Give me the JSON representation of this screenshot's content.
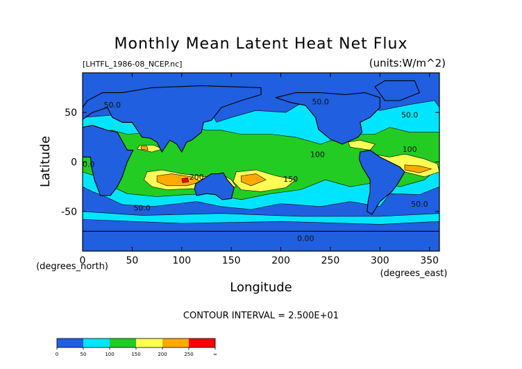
{
  "chart_data": {
    "type": "heatmap",
    "title": "Monthly Mean Latent Heat Net Flux",
    "file_label": "[LHTFL_1986-08_NCEP.nc]",
    "units_label": "(units:W/m^2)",
    "xlabel": "Longitude",
    "ylabel": "Latitude",
    "x_unit_label": "(degrees_east)",
    "y_unit_label": "(degrees_north)",
    "xlim": [
      0,
      360
    ],
    "ylim": [
      -90,
      90
    ],
    "x_ticks": [
      0,
      50,
      100,
      150,
      200,
      250,
      300,
      350
    ],
    "y_ticks": [
      -50,
      0,
      50
    ],
    "contour_interval_text": "CONTOUR INTERVAL = 2.500E+01",
    "contour_labels": [
      {
        "text": "50.0",
        "x": 30,
        "y": 55
      },
      {
        "text": "50.0",
        "x": 240,
        "y": 58
      },
      {
        "text": "50.0",
        "x": 330,
        "y": 45
      },
      {
        "text": "100",
        "x": 237,
        "y": 5
      },
      {
        "text": "150",
        "x": 210,
        "y": -20
      },
      {
        "text": "200",
        "x": 115,
        "y": -18
      },
      {
        "text": "0.0",
        "x": 6,
        "y": -5
      },
      {
        "text": "50.0",
        "x": 60,
        "y": -49
      },
      {
        "text": "0.00",
        "x": 225,
        "y": -80
      },
      {
        "text": "50.0",
        "x": 340,
        "y": -45
      },
      {
        "text": "100",
        "x": 330,
        "y": 10
      }
    ],
    "colorbar": {
      "bins": [
        {
          "from": 0,
          "to": 25,
          "color": "#1f5fe0"
        },
        {
          "from": 25,
          "to": 50,
          "color": "#1f5fe0"
        },
        {
          "from": 50,
          "to": 75,
          "color": "#00e5ff"
        },
        {
          "from": 75,
          "to": 100,
          "color": "#00e5ff"
        },
        {
          "from": 100,
          "to": 125,
          "color": "#22cc22"
        },
        {
          "from": 125,
          "to": 150,
          "color": "#22cc22"
        },
        {
          "from": 150,
          "to": 175,
          "color": "#ffff55"
        },
        {
          "from": 175,
          "to": 200,
          "color": "#ffff55"
        },
        {
          "from": 200,
          "to": 225,
          "color": "#ffaa00"
        },
        {
          "from": 225,
          "to": 250,
          "color": "#ffaa00"
        },
        {
          "from": 250,
          "to": 275,
          "color": "#ff0000"
        },
        {
          "from": 275,
          "to": null,
          "color": "#ff0000"
        }
      ],
      "tick_labels": [
        "0",
        "50",
        "100",
        "150",
        "200",
        "250",
        "∞"
      ]
    },
    "regions": [
      {
        "level": 0,
        "color": "#1f5fe0",
        "points": [
          [
            0,
            -90
          ],
          [
            360,
            -90
          ],
          [
            360,
            90
          ],
          [
            0,
            90
          ]
        ]
      },
      {
        "level": 1,
        "color": "#00e5ff",
        "points": [
          [
            0,
            45
          ],
          [
            40,
            48
          ],
          [
            55,
            62
          ],
          [
            80,
            66
          ],
          [
            110,
            58
          ],
          [
            130,
            50
          ],
          [
            135,
            40
          ],
          [
            150,
            45
          ],
          [
            175,
            52
          ],
          [
            205,
            50
          ],
          [
            225,
            62
          ],
          [
            250,
            66
          ],
          [
            275,
            60
          ],
          [
            300,
            52
          ],
          [
            330,
            58
          ],
          [
            355,
            62
          ],
          [
            360,
            55
          ],
          [
            360,
            -25
          ],
          [
            340,
            -33
          ],
          [
            310,
            -32
          ],
          [
            300,
            -45
          ],
          [
            270,
            -40
          ],
          [
            240,
            -45
          ],
          [
            200,
            -42
          ],
          [
            170,
            -48
          ],
          [
            140,
            -45
          ],
          [
            115,
            -40
          ],
          [
            70,
            -45
          ],
          [
            40,
            -43
          ],
          [
            25,
            -36
          ],
          [
            10,
            -30
          ],
          [
            0,
            -25
          ]
        ]
      },
      {
        "level": 1,
        "color": "#00e5ff",
        "points": [
          [
            0,
            -50
          ],
          [
            60,
            -54
          ],
          [
            140,
            -52
          ],
          [
            220,
            -55
          ],
          [
            300,
            -55
          ],
          [
            360,
            -52
          ],
          [
            360,
            -60
          ],
          [
            300,
            -63
          ],
          [
            200,
            -60
          ],
          [
            100,
            -62
          ],
          [
            0,
            -58
          ]
        ]
      },
      {
        "level": 2,
        "color": "#22cc22",
        "points": [
          [
            0,
            30
          ],
          [
            30,
            32
          ],
          [
            45,
            28
          ],
          [
            75,
            30
          ],
          [
            90,
            27
          ],
          [
            110,
            36
          ],
          [
            125,
            32
          ],
          [
            140,
            32
          ],
          [
            160,
            28
          ],
          [
            190,
            28
          ],
          [
            215,
            25
          ],
          [
            240,
            18
          ],
          [
            270,
            28
          ],
          [
            295,
            28
          ],
          [
            310,
            35
          ],
          [
            330,
            30
          ],
          [
            360,
            30
          ],
          [
            360,
            -5
          ],
          [
            345,
            -18
          ],
          [
            320,
            -25
          ],
          [
            300,
            -20
          ],
          [
            270,
            -25
          ],
          [
            245,
            -18
          ],
          [
            220,
            -28
          ],
          [
            190,
            -32
          ],
          [
            160,
            -38
          ],
          [
            130,
            -32
          ],
          [
            105,
            -33
          ],
          [
            75,
            -35
          ],
          [
            45,
            -32
          ],
          [
            30,
            -25
          ],
          [
            15,
            -15
          ],
          [
            0,
            -10
          ]
        ]
      },
      {
        "level": 3,
        "color": "#ffff55",
        "points": [
          [
            65,
            -10
          ],
          [
            80,
            -8
          ],
          [
            100,
            -12
          ],
          [
            125,
            -15
          ],
          [
            140,
            -12
          ],
          [
            150,
            -18
          ],
          [
            155,
            -25
          ],
          [
            135,
            -28
          ],
          [
            110,
            -27
          ],
          [
            85,
            -28
          ],
          [
            70,
            -25
          ],
          [
            62,
            -18
          ]
        ]
      },
      {
        "level": 3,
        "color": "#ffff55",
        "points": [
          [
            155,
            -10
          ],
          [
            175,
            -8
          ],
          [
            195,
            -14
          ],
          [
            215,
            -18
          ],
          [
            205,
            -26
          ],
          [
            180,
            -30
          ],
          [
            160,
            -28
          ],
          [
            152,
            -20
          ]
        ]
      },
      {
        "level": 3,
        "color": "#ffff55",
        "points": [
          [
            292,
            8
          ],
          [
            310,
            5
          ],
          [
            325,
            8
          ],
          [
            345,
            3
          ],
          [
            358,
            -2
          ],
          [
            360,
            -10
          ],
          [
            345,
            -15
          ],
          [
            325,
            -10
          ],
          [
            305,
            -8
          ],
          [
            293,
            -2
          ]
        ]
      },
      {
        "level": 3,
        "color": "#ffff55",
        "points": [
          [
            55,
            13
          ],
          [
            70,
            10
          ],
          [
            80,
            13
          ],
          [
            72,
            17
          ],
          [
            58,
            17
          ]
        ]
      },
      {
        "level": 3,
        "color": "#ffff55",
        "points": [
          [
            270,
            15
          ],
          [
            290,
            12
          ],
          [
            295,
            18
          ],
          [
            280,
            22
          ],
          [
            268,
            20
          ]
        ]
      },
      {
        "level": 4,
        "color": "#ffaa00",
        "points": [
          [
            75,
            -14
          ],
          [
            90,
            -12
          ],
          [
            110,
            -15
          ],
          [
            120,
            -20
          ],
          [
            105,
            -24
          ],
          [
            85,
            -24
          ],
          [
            75,
            -20
          ]
        ]
      },
      {
        "level": 4,
        "color": "#ffaa00",
        "points": [
          [
            160,
            -14
          ],
          [
            175,
            -12
          ],
          [
            185,
            -18
          ],
          [
            170,
            -24
          ],
          [
            160,
            -20
          ]
        ]
      },
      {
        "level": 4,
        "color": "#ffaa00",
        "points": [
          [
            325,
            -3
          ],
          [
            340,
            -4
          ],
          [
            352,
            -7
          ],
          [
            340,
            -11
          ],
          [
            325,
            -8
          ]
        ]
      },
      {
        "level": 4,
        "color": "#ffaa00",
        "points": [
          [
            59,
            13
          ],
          [
            66,
            12
          ],
          [
            65,
            16
          ],
          [
            59,
            16
          ]
        ]
      },
      {
        "level": 5,
        "color": "#ff0000",
        "points": [
          [
            100,
            -17
          ],
          [
            106,
            -16
          ],
          [
            107,
            -20
          ],
          [
            101,
            -21
          ]
        ]
      }
    ],
    "land": [
      {
        "name": "south-america",
        "color": "#1f5fe0",
        "points": [
          [
            280,
            10
          ],
          [
            290,
            12
          ],
          [
            300,
            5
          ],
          [
            320,
            -5
          ],
          [
            325,
            -10
          ],
          [
            318,
            -22
          ],
          [
            312,
            -30
          ],
          [
            300,
            -40
          ],
          [
            292,
            -53
          ],
          [
            287,
            -50
          ],
          [
            288,
            -40
          ],
          [
            290,
            -30
          ],
          [
            290,
            -18
          ],
          [
            282,
            -5
          ],
          [
            279,
            3
          ]
        ]
      },
      {
        "name": "africa",
        "color": "#1f5fe0",
        "points": [
          [
            0,
            35
          ],
          [
            10,
            37
          ],
          [
            25,
            32
          ],
          [
            35,
            30
          ],
          [
            45,
            12
          ],
          [
            51,
            12
          ],
          [
            45,
            0
          ],
          [
            40,
            -15
          ],
          [
            35,
            -25
          ],
          [
            28,
            -34
          ],
          [
            18,
            -34
          ],
          [
            12,
            -18
          ],
          [
            9,
            -5
          ],
          [
            8,
            5
          ],
          [
            0,
            5
          ]
        ]
      },
      {
        "name": "australia",
        "color": "#1f5fe0",
        "points": [
          [
            114,
            -22
          ],
          [
            122,
            -17
          ],
          [
            130,
            -12
          ],
          [
            137,
            -12
          ],
          [
            142,
            -11
          ],
          [
            146,
            -18
          ],
          [
            153,
            -26
          ],
          [
            150,
            -37
          ],
          [
            141,
            -38
          ],
          [
            134,
            -33
          ],
          [
            125,
            -32
          ],
          [
            115,
            -34
          ],
          [
            113,
            -27
          ]
        ]
      },
      {
        "name": "north-america",
        "color": "#1f5fe0",
        "points": [
          [
            195,
            65
          ],
          [
            215,
            70
          ],
          [
            240,
            70
          ],
          [
            265,
            68
          ],
          [
            285,
            70
          ],
          [
            300,
            65
          ],
          [
            300,
            55
          ],
          [
            290,
            45
          ],
          [
            280,
            40
          ],
          [
            282,
            30
          ],
          [
            278,
            25
          ],
          [
            262,
            18
          ],
          [
            250,
            23
          ],
          [
            238,
            33
          ],
          [
            235,
            45
          ],
          [
            225,
            57
          ],
          [
            210,
            60
          ]
        ]
      },
      {
        "name": "eurasia",
        "color": "#1f5fe0",
        "points": [
          [
            0,
            43
          ],
          [
            10,
            50
          ],
          [
            25,
            55
          ],
          [
            30,
            45
          ],
          [
            40,
            40
          ],
          [
            50,
            40
          ],
          [
            60,
            25
          ],
          [
            68,
            24
          ],
          [
            75,
            20
          ],
          [
            80,
            10
          ],
          [
            88,
            22
          ],
          [
            95,
            18
          ],
          [
            100,
            10
          ],
          [
            105,
            20
          ],
          [
            110,
            22
          ],
          [
            120,
            30
          ],
          [
            122,
            40
          ],
          [
            130,
            42
          ],
          [
            140,
            55
          ],
          [
            160,
            62
          ],
          [
            180,
            68
          ],
          [
            180,
            75
          ],
          [
            120,
            77
          ],
          [
            70,
            75
          ],
          [
            40,
            70
          ],
          [
            20,
            70
          ],
          [
            5,
            62
          ],
          [
            0,
            55
          ]
        ]
      },
      {
        "name": "greenland",
        "color": "#1f5fe0",
        "points": [
          [
            305,
            62
          ],
          [
            320,
            62
          ],
          [
            340,
            70
          ],
          [
            335,
            82
          ],
          [
            305,
            82
          ],
          [
            295,
            76
          ]
        ]
      },
      {
        "name": "antarctica",
        "color": "#1f5fe0",
        "points": [
          [
            0,
            -70
          ],
          [
            360,
            -70
          ],
          [
            360,
            -90
          ],
          [
            0,
            -90
          ]
        ]
      }
    ]
  }
}
